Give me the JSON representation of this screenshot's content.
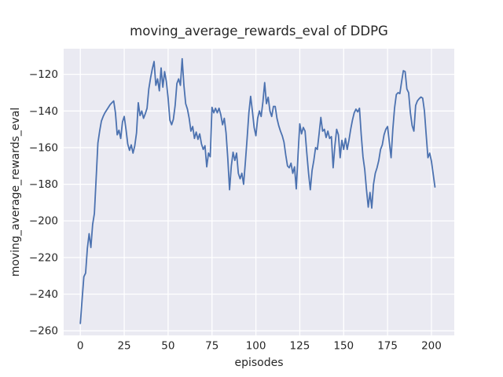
{
  "title": "moving_average_rewards_eval of DDPG",
  "chart_data": {
    "type": "line",
    "title": "moving_average_rewards_eval of DDPG",
    "xlabel": "episodes",
    "ylabel": "moving_average_rewards_eval",
    "x_ticks": [
      0,
      25,
      50,
      75,
      100,
      125,
      150,
      175,
      200
    ],
    "y_ticks": [
      -120,
      -140,
      -160,
      -180,
      -200,
      -220,
      -240,
      -260
    ],
    "xlim": [
      -9.5,
      213
    ],
    "ylim": [
      -262.5,
      -106
    ],
    "grid": true,
    "legend_position": "none",
    "style": "seaborn-darkgrid",
    "colors": {
      "line": "#4c72b0",
      "axes_background": "#eaeaf2",
      "grid": "#ffffff",
      "text": "#262626",
      "figure_background": "#ffffff"
    },
    "x_start": 0,
    "x_step": 1,
    "values": [
      -256,
      -243,
      -230.5,
      -228.5,
      -215,
      -207,
      -214.5,
      -202,
      -196,
      -177,
      -157.5,
      -151,
      -145.5,
      -143,
      -141,
      -139.5,
      -138,
      -136.5,
      -135.5,
      -134.5,
      -141,
      -153,
      -150.5,
      -155,
      -146,
      -143,
      -150,
      -158,
      -161.5,
      -158.5,
      -163,
      -159,
      -152,
      -135.5,
      -142.5,
      -140,
      -144,
      -141.5,
      -138.5,
      -128,
      -122,
      -117,
      -113,
      -126,
      -122.5,
      -129,
      -116.5,
      -127,
      -118.5,
      -124,
      -133,
      -145,
      -147.5,
      -144.5,
      -137,
      -125,
      -122.5,
      -126,
      -111.5,
      -126,
      -136,
      -139,
      -144,
      -151,
      -148.5,
      -155,
      -151.5,
      -155.5,
      -152.5,
      -158,
      -161,
      -159,
      -170.5,
      -163,
      -165,
      -138,
      -141,
      -138.5,
      -141,
      -138.5,
      -142,
      -147.5,
      -144,
      -152,
      -166,
      -183,
      -170,
      -162.5,
      -167,
      -163,
      -174,
      -177,
      -174,
      -180,
      -168,
      -155,
      -141,
      -132,
      -140,
      -149,
      -153.5,
      -144,
      -140,
      -143,
      -135,
      -124.5,
      -136,
      -132.5,
      -140,
      -143,
      -137.5,
      -137.5,
      -144,
      -148,
      -151,
      -153.5,
      -157,
      -164,
      -170,
      -171,
      -168.5,
      -174,
      -170.5,
      -182.5,
      -164,
      -147,
      -152.5,
      -149,
      -151,
      -163,
      -174,
      -183,
      -172.5,
      -167,
      -160,
      -161,
      -152.5,
      -143.5,
      -151,
      -150,
      -154.5,
      -151,
      -155,
      -154,
      -171,
      -159,
      -150,
      -153,
      -165.5,
      -156,
      -161,
      -155,
      -161,
      -156,
      -150,
      -145,
      -141,
      -139,
      -140.5,
      -138.5,
      -153,
      -165,
      -172,
      -183,
      -192.5,
      -184.5,
      -193,
      -180,
      -174,
      -171,
      -167,
      -161,
      -158.5,
      -153,
      -150,
      -148.5,
      -157,
      -165.5,
      -150,
      -138.3,
      -131,
      -130,
      -130.5,
      -124,
      -118,
      -118.5,
      -128,
      -130,
      -141,
      -148,
      -151,
      -137,
      -134.5,
      -133.3,
      -132.4,
      -133,
      -140,
      -153,
      -165.5,
      -163,
      -167.5,
      -174.5,
      -181.5
    ]
  }
}
